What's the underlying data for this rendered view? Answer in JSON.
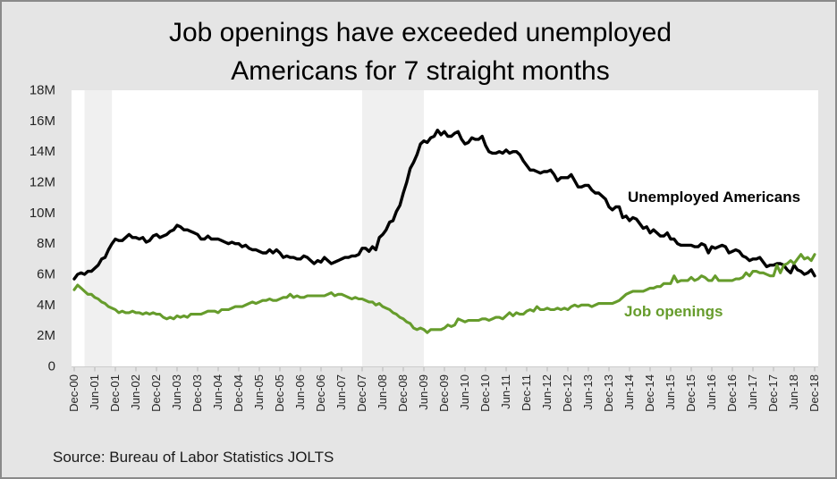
{
  "title_lines": [
    "Job openings have exceeded unemployed",
    "Americans for 7 straight months"
  ],
  "source": "Source: Bureau of Labor Statistics JOLTS",
  "colors": {
    "background": "#e5e5e5",
    "border": "#8a8a8a",
    "plot_background": "#ffffff",
    "recession_band": "#f0f0f0",
    "axis_line": "#cccccc",
    "axis_tick": "#b5b5b5",
    "unemployed": "#000000",
    "openings": "#669c2c"
  },
  "chart_data": {
    "type": "line",
    "title": "Job openings have exceeded unemployed Americans for 7 straight months",
    "unit": "millions of people",
    "x_start": "Dec-00",
    "x_end": "Dec-18",
    "x_frequency": "monthly",
    "ylim": [
      0,
      18
    ],
    "grid": false,
    "legend_position": "inline-labels",
    "y_ticks": [
      {
        "label": "0",
        "value": 0
      },
      {
        "label": "2M",
        "value": 2
      },
      {
        "label": "4M",
        "value": 4
      },
      {
        "label": "6M",
        "value": 6
      },
      {
        "label": "8M",
        "value": 8
      },
      {
        "label": "10M",
        "value": 10
      },
      {
        "label": "12M",
        "value": 12
      },
      {
        "label": "14M",
        "value": 14
      },
      {
        "label": "16M",
        "value": 16
      },
      {
        "label": "18M",
        "value": 18
      }
    ],
    "x_tick_every_months": 6,
    "x_tick_labels": [
      "Dec-00",
      "Jun-01",
      "Dec-01",
      "Jun-02",
      "Dec-02",
      "Jun-03",
      "Dec-03",
      "Jun-04",
      "Dec-04",
      "Jun-05",
      "Dec-05",
      "Jun-06",
      "Dec-06",
      "Jun-07",
      "Dec-07",
      "Jun-08",
      "Dec-08",
      "Jun-09",
      "Dec-09",
      "Jun-10",
      "Dec-10",
      "Jun-11",
      "Dec-11",
      "Jun-12",
      "Dec-12",
      "Jun-13",
      "Dec-13",
      "Jun-14",
      "Dec-14",
      "Jun-15",
      "Dec-15",
      "Jun-16",
      "Dec-16",
      "Jun-17",
      "Dec-17",
      "Jun-18",
      "Dec-18"
    ],
    "shaded_regions": [
      {
        "label": "2001 recession",
        "start_month_index": 3,
        "end_month_index": 11
      },
      {
        "label": "2008-09 recession",
        "start_month_index": 84,
        "end_month_index": 102
      }
    ],
    "series": [
      {
        "name": "Unemployed Americans",
        "color": "#000000",
        "values": [
          5.7,
          6.0,
          6.1,
          6.0,
          6.2,
          6.2,
          6.4,
          6.6,
          7.0,
          7.1,
          7.6,
          8.0,
          8.3,
          8.2,
          8.2,
          8.4,
          8.6,
          8.4,
          8.4,
          8.3,
          8.4,
          8.1,
          8.2,
          8.5,
          8.6,
          8.4,
          8.5,
          8.6,
          8.8,
          8.9,
          9.2,
          9.1,
          8.9,
          8.9,
          8.8,
          8.7,
          8.6,
          8.3,
          8.3,
          8.5,
          8.3,
          8.3,
          8.3,
          8.2,
          8.1,
          8.0,
          8.1,
          8.0,
          8.0,
          7.8,
          7.9,
          7.7,
          7.6,
          7.6,
          7.5,
          7.4,
          7.4,
          7.6,
          7.4,
          7.6,
          7.4,
          7.1,
          7.2,
          7.1,
          7.1,
          7.0,
          7.0,
          7.2,
          7.1,
          6.9,
          6.7,
          6.9,
          6.8,
          7.1,
          6.9,
          6.7,
          6.8,
          6.9,
          7.0,
          7.1,
          7.1,
          7.2,
          7.2,
          7.3,
          7.7,
          7.7,
          7.5,
          7.8,
          7.6,
          8.4,
          8.6,
          8.9,
          9.4,
          9.5,
          10.1,
          10.5,
          11.3,
          12.0,
          12.9,
          13.3,
          13.8,
          14.5,
          14.7,
          14.6,
          14.9,
          15.0,
          15.4,
          15.1,
          15.3,
          15.0,
          15.0,
          15.2,
          15.3,
          14.8,
          14.5,
          14.6,
          14.9,
          14.8,
          14.8,
          15.0,
          14.4,
          14.0,
          13.9,
          13.9,
          14.0,
          13.9,
          14.1,
          13.9,
          14.0,
          14.0,
          13.8,
          13.4,
          13.1,
          12.8,
          12.8,
          12.7,
          12.6,
          12.7,
          12.7,
          12.8,
          12.5,
          12.1,
          12.3,
          12.3,
          12.3,
          12.5,
          12.1,
          11.7,
          11.7,
          11.8,
          11.8,
          11.5,
          11.3,
          11.3,
          11.1,
          10.9,
          10.4,
          10.2,
          10.4,
          10.4,
          9.7,
          9.8,
          9.5,
          9.7,
          9.6,
          9.3,
          9.0,
          9.1,
          8.7,
          8.9,
          8.7,
          8.5,
          8.5,
          8.7,
          8.3,
          8.3,
          8.0,
          7.9,
          7.9,
          7.9,
          7.9,
          7.8,
          7.8,
          8.0,
          7.9,
          7.4,
          7.8,
          7.7,
          7.8,
          7.9,
          7.8,
          7.4,
          7.5,
          7.6,
          7.5,
          7.2,
          7.1,
          6.9,
          7.0,
          7.0,
          7.1,
          6.8,
          6.5,
          6.6,
          6.6,
          6.7,
          6.7,
          6.6,
          6.3,
          6.1,
          6.6,
          6.3,
          6.2,
          6.0,
          6.1,
          6.3,
          5.9
        ]
      },
      {
        "name": "Job openings",
        "color": "#669c2c",
        "values": [
          5.0,
          5.3,
          5.1,
          4.9,
          4.7,
          4.7,
          4.5,
          4.4,
          4.2,
          4.1,
          3.9,
          3.8,
          3.7,
          3.5,
          3.6,
          3.5,
          3.5,
          3.6,
          3.5,
          3.5,
          3.4,
          3.5,
          3.4,
          3.5,
          3.4,
          3.4,
          3.2,
          3.1,
          3.2,
          3.1,
          3.3,
          3.2,
          3.3,
          3.2,
          3.4,
          3.4,
          3.4,
          3.4,
          3.5,
          3.6,
          3.6,
          3.6,
          3.5,
          3.7,
          3.7,
          3.7,
          3.8,
          3.9,
          3.9,
          3.9,
          4.0,
          4.1,
          4.2,
          4.1,
          4.2,
          4.3,
          4.3,
          4.4,
          4.3,
          4.3,
          4.4,
          4.5,
          4.5,
          4.7,
          4.5,
          4.6,
          4.5,
          4.5,
          4.6,
          4.6,
          4.6,
          4.6,
          4.6,
          4.6,
          4.7,
          4.8,
          4.6,
          4.7,
          4.7,
          4.6,
          4.5,
          4.4,
          4.5,
          4.4,
          4.4,
          4.3,
          4.2,
          4.2,
          4.0,
          4.1,
          3.9,
          3.8,
          3.7,
          3.5,
          3.4,
          3.2,
          3.1,
          2.9,
          2.8,
          2.5,
          2.4,
          2.5,
          2.4,
          2.2,
          2.4,
          2.4,
          2.4,
          2.4,
          2.5,
          2.7,
          2.6,
          2.7,
          3.1,
          3.0,
          2.9,
          3.0,
          3.0,
          3.0,
          3.0,
          3.1,
          3.1,
          3.0,
          3.1,
          3.2,
          3.2,
          3.1,
          3.3,
          3.5,
          3.3,
          3.5,
          3.4,
          3.4,
          3.6,
          3.7,
          3.6,
          3.9,
          3.7,
          3.7,
          3.8,
          3.7,
          3.7,
          3.8,
          3.7,
          3.8,
          3.7,
          3.9,
          4.0,
          3.9,
          4.0,
          4.0,
          4.0,
          3.9,
          4.0,
          4.1,
          4.1,
          4.1,
          4.1,
          4.1,
          4.2,
          4.3,
          4.5,
          4.7,
          4.8,
          4.9,
          4.9,
          4.9,
          4.9,
          5.0,
          5.1,
          5.1,
          5.2,
          5.2,
          5.4,
          5.4,
          5.4,
          5.9,
          5.5,
          5.6,
          5.6,
          5.6,
          5.8,
          5.6,
          5.7,
          5.9,
          5.8,
          5.6,
          5.6,
          5.9,
          5.6,
          5.6,
          5.6,
          5.6,
          5.6,
          5.7,
          5.7,
          5.8,
          6.1,
          5.9,
          6.2,
          6.2,
          6.1,
          6.1,
          6.0,
          5.9,
          5.9,
          6.6,
          6.1,
          6.6,
          6.7,
          6.9,
          6.7,
          7.0,
          7.3,
          7.0,
          7.1,
          6.9,
          7.3
        ]
      }
    ]
  }
}
